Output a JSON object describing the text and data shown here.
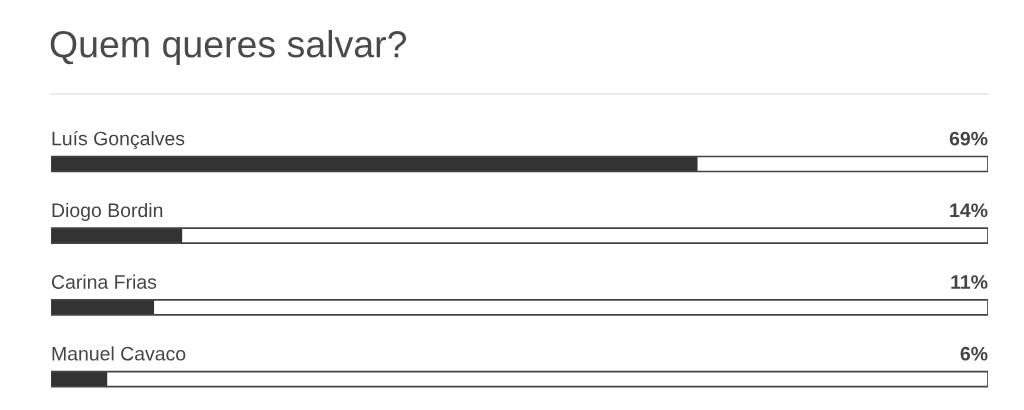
{
  "chart_data": {
    "type": "bar",
    "orientation": "horizontal",
    "title": "Quem queres salvar?",
    "categories": [
      "Luís Gonçalves",
      "Diogo Bordin",
      "Carina Frias",
      "Manuel Cavaco"
    ],
    "values": [
      69,
      14,
      11,
      6
    ],
    "value_labels": [
      "69%",
      "14%",
      "11%",
      "6%"
    ],
    "color": "#333333",
    "xlim": [
      0,
      100
    ],
    "tick_labels": "y"
  }
}
